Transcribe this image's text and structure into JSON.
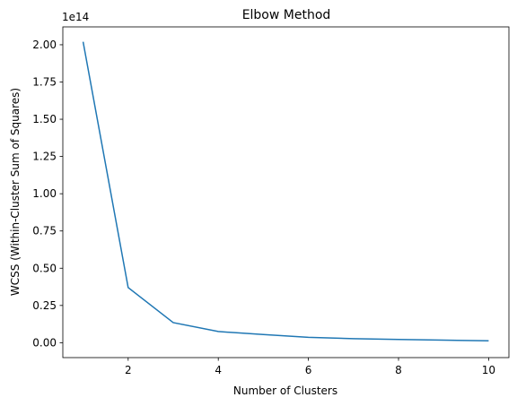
{
  "chart_data": {
    "type": "line",
    "title": "Elbow Method",
    "xlabel": "Number of Clusters",
    "ylabel": "WCSS (Within-Cluster Sum of Squares)",
    "y_offset_label": "1e14",
    "x": [
      1,
      2,
      3,
      4,
      5,
      6,
      7,
      8,
      9,
      10
    ],
    "series": [
      {
        "values": [
          202000000000000.0,
          37000000000000.0,
          13500000000000.0,
          7500000000000.0,
          5500000000000.0,
          3600000000000.0,
          2700000000000.0,
          2200000000000.0,
          1700000000000.0,
          1300000000000.0
        ],
        "color": "#1f77b4"
      }
    ],
    "xlim": [
      0.55,
      10.45
    ],
    "ylim": [
      -10000000000000.0,
      212000000000000.0
    ],
    "x_ticks": [
      2,
      4,
      6,
      8,
      10
    ],
    "x_tick_labels": [
      "2",
      "4",
      "6",
      "8",
      "10"
    ],
    "y_ticks": [
      0,
      25000000000000.0,
      50000000000000.0,
      75000000000000.0,
      100000000000000.0,
      125000000000000.0,
      150000000000000.0,
      175000000000000.0,
      200000000000000.0
    ],
    "y_tick_labels": [
      "0.00",
      "0.25",
      "0.50",
      "0.75",
      "1.00",
      "1.25",
      "1.50",
      "1.75",
      "2.00"
    ],
    "grid": false,
    "legend": "none"
  }
}
